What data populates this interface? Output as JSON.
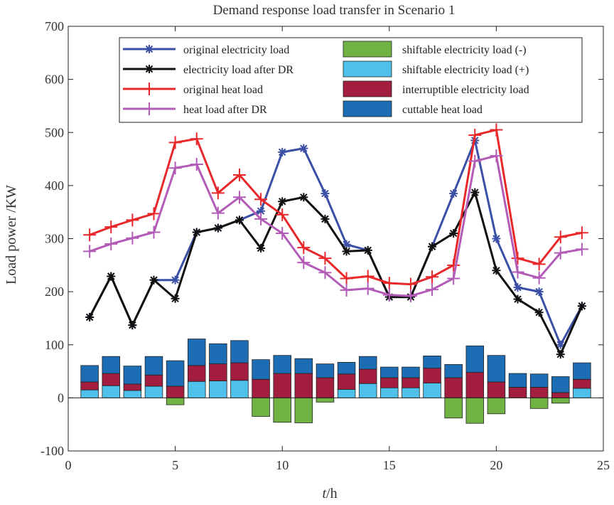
{
  "chart_data": {
    "type": "bar+line",
    "title": "Demand response load transfer in Scenario 1",
    "xlabel": "h",
    "xlabel_italic_prefix": "t",
    "xlabel_sep": "/",
    "ylabel": "Load power /KW",
    "xlim": [
      0,
      25
    ],
    "ylim": [
      -100,
      700
    ],
    "xticks": [
      0,
      5,
      10,
      15,
      20,
      25
    ],
    "yticks": [
      -100,
      0,
      100,
      200,
      300,
      400,
      500,
      600,
      700
    ],
    "legend_position": "top",
    "x": [
      1,
      2,
      3,
      4,
      5,
      6,
      7,
      8,
      9,
      10,
      11,
      12,
      13,
      14,
      15,
      16,
      17,
      18,
      19,
      20,
      21,
      22,
      23,
      24
    ],
    "lines": [
      {
        "name": "original electricity load",
        "color": "#3a4fa5",
        "marker": "asterisk",
        "values": [
          152,
          229,
          137,
          222,
          222,
          312,
          320,
          335,
          352,
          463,
          470,
          385,
          289,
          278,
          190,
          190,
          285,
          385,
          485,
          300,
          208,
          200,
          100,
          173
        ]
      },
      {
        "name": "electricity load after DR",
        "color": "#111111",
        "marker": "asterisk",
        "values": [
          152,
          229,
          137,
          222,
          187,
          312,
          320,
          335,
          282,
          370,
          378,
          337,
          276,
          278,
          190,
          190,
          285,
          310,
          387,
          240,
          186,
          161,
          82,
          173
        ]
      },
      {
        "name": "original heat load",
        "color": "#e8282b",
        "marker": "plus",
        "values": [
          307,
          322,
          335,
          347,
          481,
          488,
          386,
          420,
          374,
          345,
          283,
          263,
          225,
          229,
          216,
          214,
          228,
          250,
          495,
          505,
          263,
          252,
          303,
          311
        ]
      },
      {
        "name": "heat load after DR",
        "color": "#b25cb8",
        "marker": "plus",
        "values": [
          276,
          290,
          301,
          312,
          433,
          440,
          348,
          378,
          337,
          310,
          255,
          236,
          203,
          206,
          194,
          192,
          204,
          225,
          446,
          456,
          237,
          226,
          273,
          280
        ]
      }
    ],
    "bars": [
      {
        "name": "shiftable electricity load (-)",
        "color": "#70b244",
        "values": [
          0,
          0,
          0,
          0,
          -13,
          0,
          0,
          0,
          -35,
          -46,
          -47,
          -8,
          0,
          0,
          0,
          0,
          0,
          -38,
          -48,
          -30,
          0,
          -20,
          -10,
          0
        ]
      },
      {
        "name": "shiftable electricity load (+)",
        "color": "#4fc0ea",
        "values": [
          15,
          23,
          14,
          22,
          0,
          31,
          32,
          33,
          0,
          0,
          0,
          0,
          16,
          27,
          19,
          19,
          28,
          0,
          0,
          0,
          0,
          0,
          0,
          18
        ]
      },
      {
        "name": "interruptible electricity load",
        "color": "#a31d3f",
        "values": [
          15,
          23,
          12,
          21,
          22,
          30,
          32,
          33,
          35,
          46,
          46,
          38,
          29,
          27,
          19,
          19,
          28,
          38,
          48,
          30,
          20,
          20,
          10,
          17
        ]
      },
      {
        "name": "cuttable heat load",
        "color": "#1d6db5",
        "values": [
          31,
          32,
          34,
          35,
          48,
          50,
          38,
          42,
          37,
          34,
          28,
          26,
          22,
          24,
          20,
          20,
          23,
          25,
          50,
          50,
          26,
          25,
          30,
          31
        ]
      }
    ],
    "legend_lines": [
      "original electricity load",
      "electricity load after DR",
      "original heat load",
      "heat load after DR"
    ],
    "legend_bars": [
      "shiftable electricity load (-)",
      "shiftable electricity load (+)",
      "interruptible electricity load",
      "cuttable heat load"
    ]
  }
}
